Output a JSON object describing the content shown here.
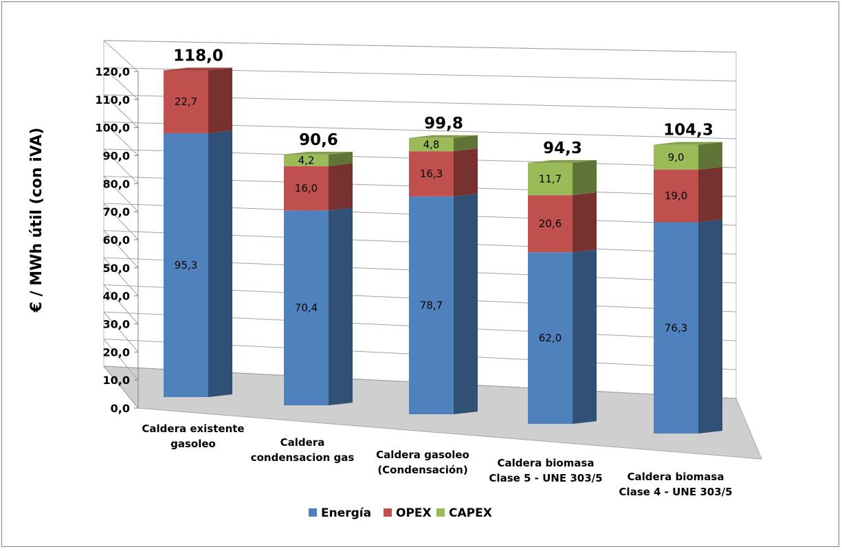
{
  "chart_data": {
    "type": "bar",
    "stacked": true,
    "title": "",
    "xlabel": "",
    "ylabel": "€ / MWh útil (con iVA)",
    "ylim": [
      0,
      120
    ],
    "yticks": [
      "0,0",
      "10,0",
      "20,0",
      "30,0",
      "40,0",
      "50,0",
      "60,0",
      "70,0",
      "80,0",
      "90,0",
      "100,0",
      "110,0",
      "120,0"
    ],
    "categories": [
      [
        "Caldera existente",
        "gasoleo"
      ],
      [
        "Caldera",
        "condensacion gas"
      ],
      [
        "Caldera gasoleo",
        "(Condensación)"
      ],
      [
        "Caldera biomasa",
        "Clase 5 - UNE 303/5"
      ],
      [
        "Caldera biomasa",
        "Clase 4 - UNE 303/5"
      ]
    ],
    "series": [
      {
        "name": "Energía",
        "color": "#4f81bd",
        "values": [
          95.3,
          70.4,
          78.7,
          62.0,
          76.3
        ],
        "labels": [
          "95,3",
          "70,4",
          "78,7",
          "62,0",
          "76,3"
        ]
      },
      {
        "name": "OPEX",
        "color": "#c0504d",
        "values": [
          22.7,
          16.0,
          16.3,
          20.6,
          19.0
        ],
        "labels": [
          "22,7",
          "16,0",
          "16,3",
          "20,6",
          "19,0"
        ]
      },
      {
        "name": "CAPEX",
        "color": "#9bbb59",
        "values": [
          0,
          4.2,
          4.8,
          11.7,
          9.0
        ],
        "labels": [
          "",
          "4,2",
          "4,8",
          "11,7",
          "9,0"
        ]
      }
    ],
    "totals": [
      "118,0",
      "90,6",
      "99,8",
      "94,3",
      "104,3"
    ],
    "legend": "bottom",
    "grid": true,
    "style": "3d-perspective"
  }
}
